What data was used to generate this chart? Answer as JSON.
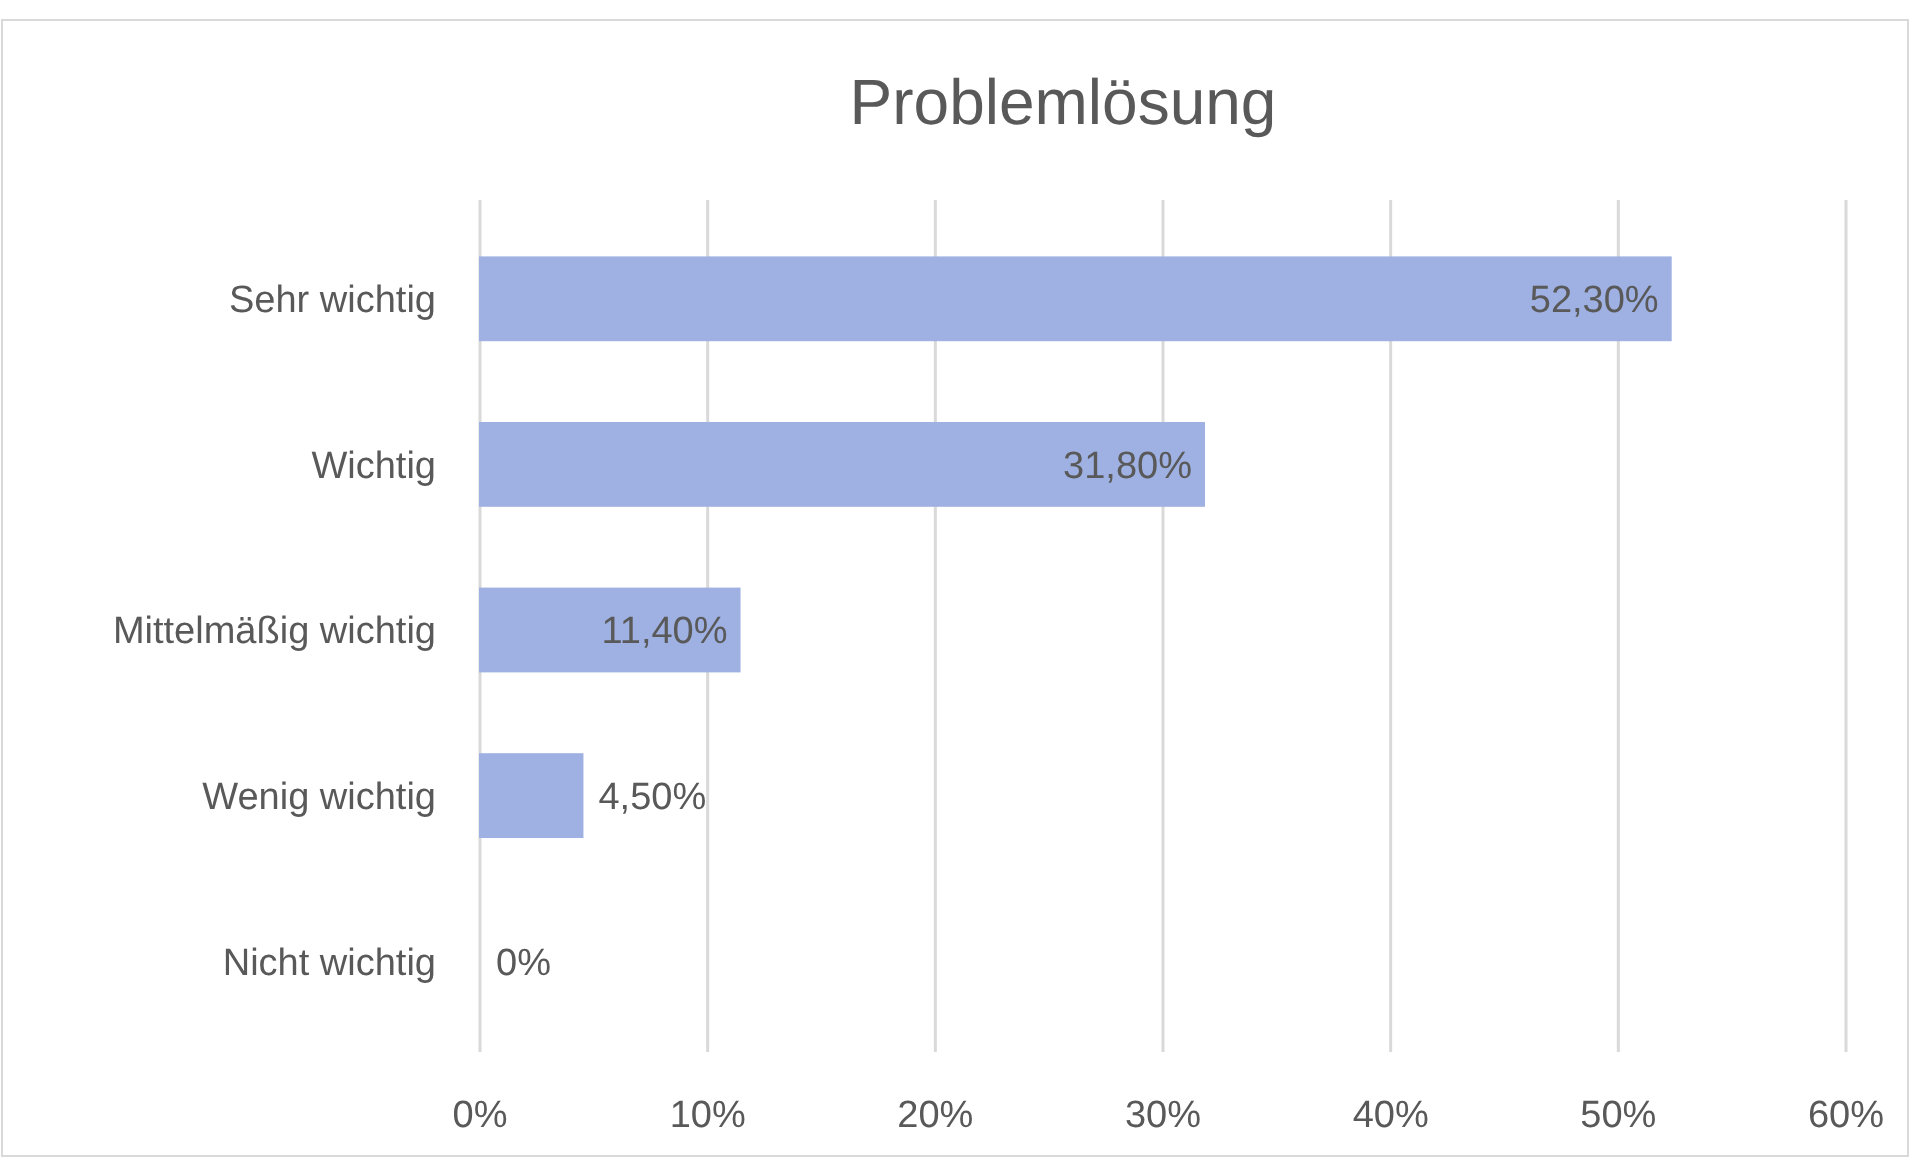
{
  "chart_data": {
    "type": "bar",
    "orientation": "horizontal",
    "title": "Problemlösung",
    "categories": [
      "Sehr wichtig",
      "Wichtig",
      "Mittelmäßig wichtig",
      "Wenig wichtig",
      "Nicht wichtig"
    ],
    "values": [
      52.3,
      31.8,
      11.4,
      4.5,
      0
    ],
    "value_labels": [
      "52,30%",
      "31,80%",
      "11,40%",
      "4,50%",
      "0%"
    ],
    "color": "#9fb1e2",
    "xlim": [
      0,
      60
    ],
    "xticks": [
      {
        "value": 0,
        "label": "0%"
      },
      {
        "value": 10,
        "label": "10%"
      },
      {
        "value": 20,
        "label": "20%"
      },
      {
        "value": 30,
        "label": "30%"
      },
      {
        "value": 40,
        "label": "40%"
      },
      {
        "value": 50,
        "label": "50%"
      },
      {
        "value": 60,
        "label": "60%"
      }
    ],
    "grid": "x"
  }
}
